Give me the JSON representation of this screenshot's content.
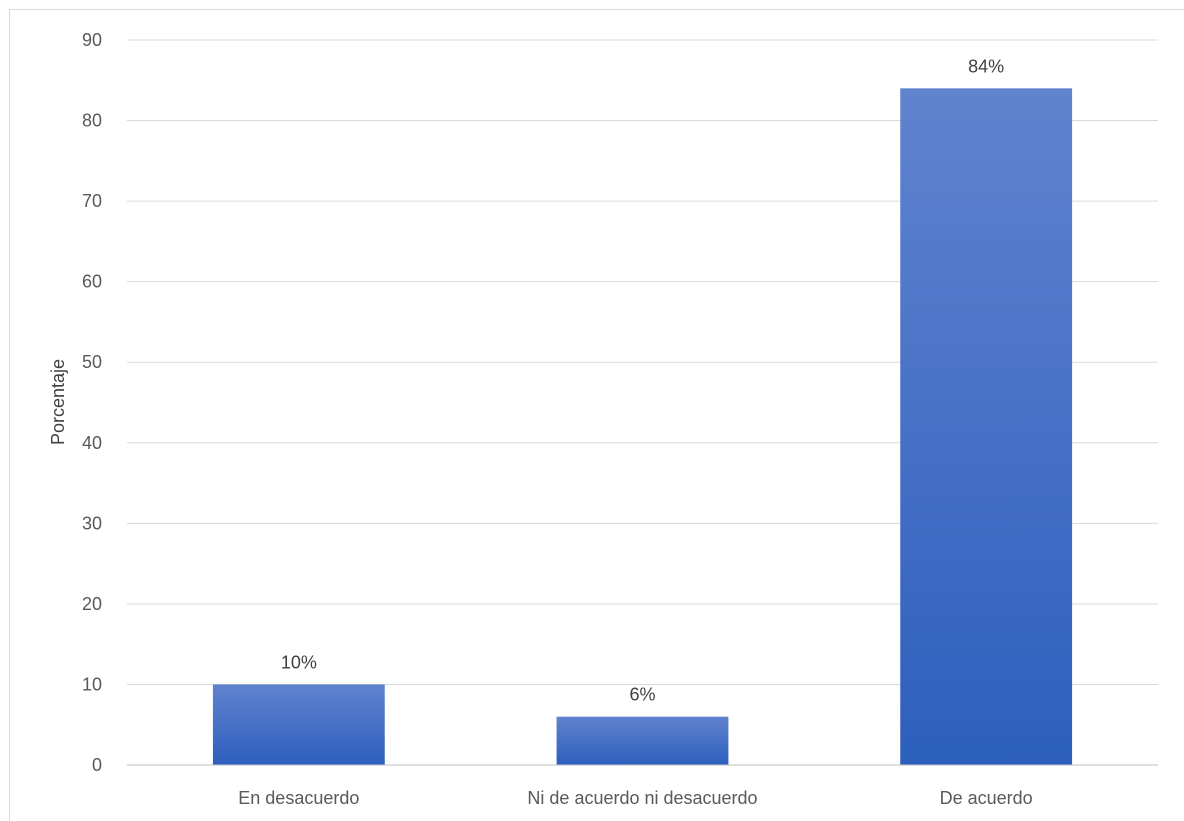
{
  "chart_data": {
    "type": "bar",
    "title": "",
    "xlabel": "",
    "ylabel": "Porcentaje",
    "ylim": [
      0,
      90
    ],
    "yticks": [
      0,
      10,
      20,
      30,
      40,
      50,
      60,
      70,
      80,
      90
    ],
    "grid": true,
    "legend": "none",
    "categories": [
      "En desacuerdo",
      "Ni de acuerdo ni desacuerdo",
      "De acuerdo"
    ],
    "values": [
      10,
      6,
      84
    ],
    "data_labels": [
      "10%",
      "6%",
      "84%"
    ],
    "bar_color_top": "#6083cf",
    "bar_color_bottom": "#2d5fbd"
  }
}
